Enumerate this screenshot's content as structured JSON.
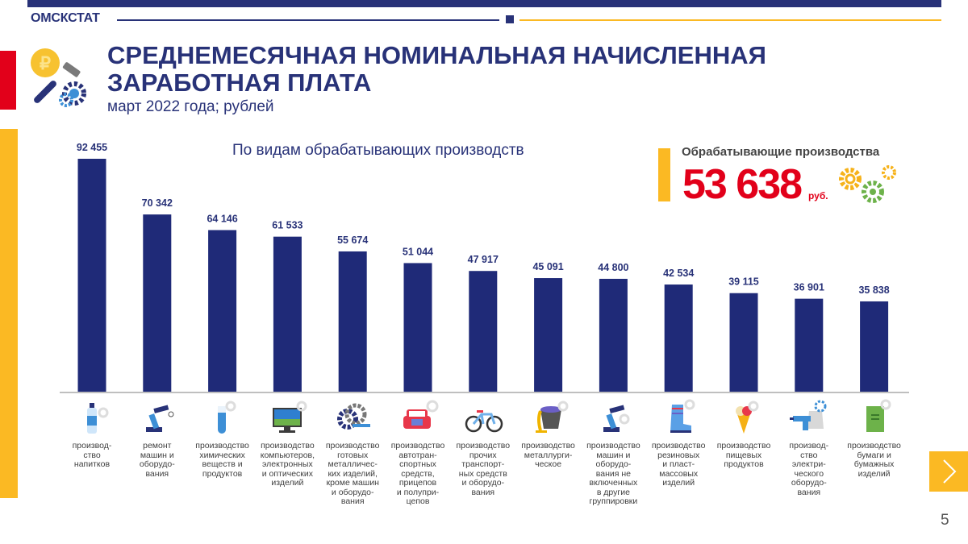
{
  "header": {
    "org": "ОМСКСТАТ",
    "title": "СРЕДНЕМЕСЯЧНАЯ НОМИНАЛЬНАЯ НАЧИСЛЕННАЯ ЗАРАБОТНАЯ ПЛАТА",
    "subtitle": "март 2022 года; рублей",
    "icon": "ruble-coin-hammer-gear-icon"
  },
  "kpi": {
    "label": "Обрабатывающие производства",
    "value": "53 638",
    "unit": "руб.",
    "icon": "gears-icon"
  },
  "colors": {
    "brand_blue": "#283278",
    "bar_blue": "#1f2a78",
    "accent_yellow": "#fbb923",
    "accent_red": "#e2001a"
  },
  "navigation": {
    "next_icon": "chevron-right-icon",
    "page_number": "5"
  },
  "chart_data": {
    "type": "bar",
    "title": "По видам обрабатывающих производств",
    "xlabel": "",
    "ylabel": "",
    "ylim": [
      0,
      100000
    ],
    "grid": false,
    "legend": "none",
    "categories": [
      "производ-ство напитков",
      "ремонт машин и оборудо-вания",
      "производство химических веществ и продуктов",
      "производство компьютеров, электронных и оптических изделий",
      "производство готовых металличес-ких изделий, кроме машин и оборудо-вания",
      "производство автотран-спортных средств, прицепов и полупри-цепов",
      "производство прочих транспорт-ных средств и оборудо-вания",
      "производство металлурги-ческое",
      "производство машин и оборудо-вания не включенных в другие группировки",
      "производство резиновых и пласт-массовых изделий",
      "производство пищевых продуктов",
      "производ-ство электри-ческого оборудо-вания",
      "производство бумаги и бумажных изделий"
    ],
    "category_lines": [
      [
        "производ-",
        "ство",
        "напитков"
      ],
      [
        "ремонт",
        "машин и",
        "оборудо-",
        "вания"
      ],
      [
        "производство",
        "химических",
        "веществ и",
        "продуктов"
      ],
      [
        "производство",
        "компьютеров,",
        "электронных",
        "и оптических",
        "изделий"
      ],
      [
        "производство",
        "готовых",
        "металличес-",
        "ких изделий,",
        "кроме машин",
        "и оборудо-",
        "вания"
      ],
      [
        "производство",
        "автотран-",
        "спортных",
        "средств,",
        "прицепов",
        "и полупри-",
        "цепов"
      ],
      [
        "производство",
        "прочих",
        "транспорт-",
        "ных средств",
        "и оборудо-",
        "вания"
      ],
      [
        "производство",
        "металлурги-",
        "ческое"
      ],
      [
        "производство",
        "машин и",
        "оборудо-",
        "вания не",
        "включенных",
        "в другие",
        "группировки"
      ],
      [
        "производство",
        "резиновых",
        "и пласт-",
        "массовых",
        "изделий"
      ],
      [
        "производство",
        "пищевых",
        "продуктов"
      ],
      [
        "производ-",
        "ство",
        "электри-",
        "ческого",
        "оборудо-",
        "вания"
      ],
      [
        "производство",
        "бумаги и",
        "бумажных",
        "изделий"
      ]
    ],
    "category_icons": [
      "water-bottle-icon",
      "robot-arm-repair-icon",
      "test-tube-icon",
      "monitor-icon",
      "metal-gears-icon",
      "car-icon",
      "bicycle-icon",
      "metal-ladle-icon",
      "robot-arm-icon",
      "rubber-boot-icon",
      "ice-cream-icon",
      "drill-kettle-icon",
      "notebook-icon"
    ],
    "values": [
      92455,
      70342,
      64146,
      61533,
      55674,
      51044,
      47917,
      45091,
      44800,
      42534,
      39115,
      36901,
      35838
    ],
    "value_labels": [
      "92 455",
      "70 342",
      "64 146",
      "61 533",
      "55 674",
      "51 044",
      "47 917",
      "45 091",
      "44 800",
      "42 534",
      "39 115",
      "36 901",
      "35 838"
    ]
  }
}
